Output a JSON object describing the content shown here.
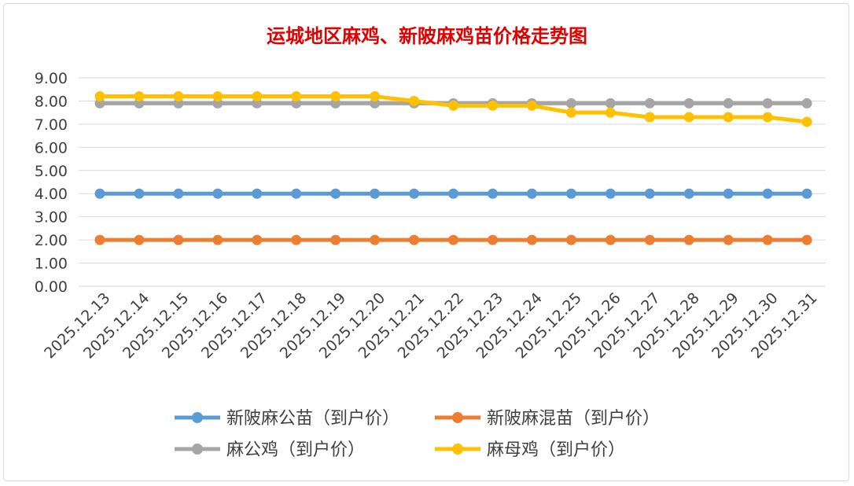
{
  "chart_data": {
    "type": "line",
    "title": "运城地区麻鸡、新陂麻鸡苗价格走势图",
    "xlabel": "",
    "ylabel": "",
    "ylim": [
      0,
      9
    ],
    "yticks": [
      "0.00",
      "1.00",
      "2.00",
      "3.00",
      "4.00",
      "5.00",
      "6.00",
      "7.00",
      "8.00",
      "9.00"
    ],
    "grid": true,
    "legend_position": "bottom",
    "categories": [
      "2025.12.13",
      "2025.12.14",
      "2025.12.15",
      "2025.12.16",
      "2025.12.17",
      "2025.12.18",
      "2025.12.19",
      "2025.12.20",
      "2025.12.21",
      "2025.12.22",
      "2025.12.23",
      "2025.12.24",
      "2025.12.25",
      "2025.12.26",
      "2025.12.27",
      "2025.12.28",
      "2025.12.29",
      "2025.12.30",
      "2025.12.31"
    ],
    "series": [
      {
        "name": "新陂麻公苗（到户价）",
        "color": "#5b9bd5",
        "values": [
          4,
          4,
          4,
          4,
          4,
          4,
          4,
          4,
          4,
          4,
          4,
          4,
          4,
          4,
          4,
          4,
          4,
          4,
          4
        ]
      },
      {
        "name": "新陂麻混苗（到户价）",
        "color": "#ed7d31",
        "values": [
          2,
          2,
          2,
          2,
          2,
          2,
          2,
          2,
          2,
          2,
          2,
          2,
          2,
          2,
          2,
          2,
          2,
          2,
          2
        ]
      },
      {
        "name": "麻公鸡（到户价）",
        "color": "#a5a5a5",
        "values": [
          7.9,
          7.9,
          7.9,
          7.9,
          7.9,
          7.9,
          7.9,
          7.9,
          7.9,
          7.9,
          7.9,
          7.9,
          7.9,
          7.9,
          7.9,
          7.9,
          7.9,
          7.9,
          7.9
        ]
      },
      {
        "name": "麻母鸡（到户价）",
        "color": "#ffc000",
        "values": [
          8.2,
          8.2,
          8.2,
          8.2,
          8.2,
          8.2,
          8.2,
          8.2,
          8.0,
          7.8,
          7.8,
          7.8,
          7.5,
          7.5,
          7.3,
          7.3,
          7.3,
          7.3,
          7.1
        ]
      }
    ]
  }
}
